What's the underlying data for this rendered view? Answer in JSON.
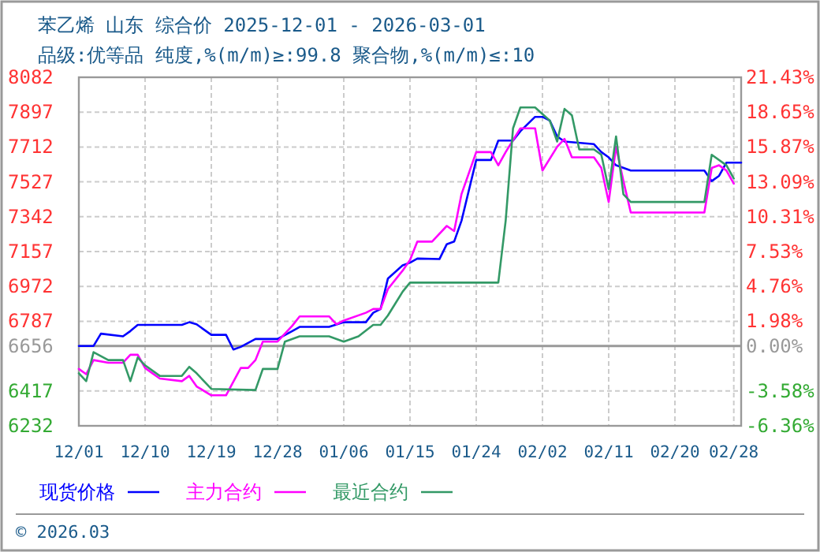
{
  "chart_data": {
    "type": "line",
    "title": "苯乙烯 山东 综合价 2025-12-01 - 2026-03-01",
    "subtitle": "品级:优等品 纯度,%(m/m)≥:99.8 聚合物,%(m/m)≤:10",
    "xlim": [
      "2025-12-01",
      "2026-03-01"
    ],
    "xticks": [
      {
        "value": "2025-12-01",
        "label": "12/01"
      },
      {
        "value": "2025-12-10",
        "label": "12/10"
      },
      {
        "value": "2025-12-19",
        "label": "12/19"
      },
      {
        "value": "2025-12-28",
        "label": "12/28"
      },
      {
        "value": "2026-01-06",
        "label": "01/06"
      },
      {
        "value": "2026-01-15",
        "label": "01/15"
      },
      {
        "value": "2026-01-24",
        "label": "01/24"
      },
      {
        "value": "2026-02-02",
        "label": "02/02"
      },
      {
        "value": "2026-02-11",
        "label": "02/11"
      },
      {
        "value": "2026-02-20",
        "label": "02/20"
      },
      {
        "value": "2026-02-28",
        "label": "02/28"
      }
    ],
    "ylim": [
      6232,
      8082
    ],
    "yticks": [
      6232,
      6417,
      6656,
      6787,
      6972,
      7157,
      7342,
      7527,
      7712,
      7897,
      8082
    ],
    "y2lim": [
      -6.36,
      21.43
    ],
    "y2ticks": [
      {
        "value": -6.36,
        "label": "-6.36%"
      },
      {
        "value": -3.58,
        "label": "-3.58%"
      },
      {
        "value": 0,
        "label": "0.00%"
      },
      {
        "value": 1.98,
        "label": "1.98%"
      },
      {
        "value": 4.76,
        "label": "4.76%"
      },
      {
        "value": 7.53,
        "label": "7.53%"
      },
      {
        "value": 10.31,
        "label": "10.31%"
      },
      {
        "value": 13.09,
        "label": "13.09%"
      },
      {
        "value": 15.87,
        "label": "15.87%"
      },
      {
        "value": 18.65,
        "label": "18.65%"
      },
      {
        "value": 21.43,
        "label": "21.43%"
      }
    ],
    "ref_lines": [
      {
        "axis": "y",
        "value": 6656,
        "color": "#999999",
        "line_style": "solid"
      }
    ],
    "grid": true,
    "legend": "bottom",
    "line_style": "solid",
    "marker": "none",
    "annotations": [
      "© 2026.03"
    ],
    "series": [
      {
        "name": "现货价格",
        "color": "#0000ff",
        "x": [
          "2025-12-01",
          "2025-12-03",
          "2025-12-04",
          "2025-12-07",
          "2025-12-08",
          "2025-12-09",
          "2025-12-15",
          "2025-12-16",
          "2025-12-17",
          "2025-12-19",
          "2025-12-21",
          "2025-12-22",
          "2025-12-23",
          "2025-12-25",
          "2025-12-28",
          "2025-12-30",
          "2025-12-31",
          "2026-01-04",
          "2026-01-06",
          "2026-01-09",
          "2026-01-10",
          "2026-01-11",
          "2026-01-12",
          "2026-01-14",
          "2026-01-15",
          "2026-01-16",
          "2026-01-19",
          "2026-01-20",
          "2026-01-21",
          "2026-01-22",
          "2026-01-24",
          "2026-01-26",
          "2026-01-27",
          "2026-01-29",
          "2026-01-30",
          "2026-02-01",
          "2026-02-02",
          "2026-02-03",
          "2026-02-04",
          "2026-02-05",
          "2026-02-09",
          "2026-02-10",
          "2026-02-11",
          "2026-02-12",
          "2026-02-14",
          "2026-02-24",
          "2026-02-25",
          "2026-02-26",
          "2026-02-27",
          "2026-03-01"
        ],
        "values": [
          6656,
          6656,
          6721,
          6707,
          6735,
          6768,
          6768,
          6782,
          6771,
          6715,
          6715,
          6637,
          6651,
          6693,
          6693,
          6735,
          6757,
          6757,
          6782,
          6782,
          6832,
          6852,
          7014,
          7084,
          7098,
          7120,
          7117,
          7196,
          7210,
          7321,
          7643,
          7643,
          7746,
          7746,
          7796,
          7872,
          7872,
          7852,
          7768,
          7741,
          7727,
          7685,
          7657,
          7615,
          7587,
          7587,
          7531,
          7559,
          7629,
          7629
        ]
      },
      {
        "name": "主力合约",
        "color": "#ff00ff",
        "x": [
          "2025-12-01",
          "2025-12-02",
          "2025-12-03",
          "2025-12-05",
          "2025-12-07",
          "2025-12-08",
          "2025-12-09",
          "2025-12-10",
          "2025-12-11",
          "2025-12-12",
          "2025-12-15",
          "2025-12-16",
          "2025-12-17",
          "2025-12-19",
          "2025-12-21",
          "2025-12-23",
          "2025-12-24",
          "2025-12-25",
          "2025-12-26",
          "2025-12-28",
          "2025-12-30",
          "2025-12-31",
          "2026-01-04",
          "2026-01-05",
          "2026-01-06",
          "2026-01-09",
          "2026-01-10",
          "2026-01-11",
          "2026-01-12",
          "2026-01-14",
          "2026-01-15",
          "2026-01-16",
          "2026-01-18",
          "2026-01-20",
          "2026-01-21",
          "2026-01-22",
          "2026-01-24",
          "2026-01-26",
          "2026-01-27",
          "2026-01-28",
          "2026-01-30",
          "2026-02-01",
          "2026-02-02",
          "2026-02-04",
          "2026-02-05",
          "2026-02-06",
          "2026-02-09",
          "2026-02-10",
          "2026-02-11",
          "2026-02-12",
          "2026-02-13",
          "2026-02-14",
          "2026-02-24",
          "2026-02-25",
          "2026-02-26",
          "2026-02-27",
          "2026-02-28"
        ],
        "values": [
          6534,
          6506,
          6581,
          6567,
          6567,
          6609,
          6609,
          6539,
          6511,
          6483,
          6469,
          6497,
          6441,
          6394,
          6394,
          6539,
          6539,
          6581,
          6679,
          6679,
          6763,
          6813,
          6813,
          6771,
          6791,
          6832,
          6852,
          6852,
          6958,
          7056,
          7112,
          7210,
          7210,
          7293,
          7266,
          7462,
          7685,
          7685,
          7615,
          7685,
          7811,
          7811,
          7587,
          7713,
          7755,
          7657,
          7657,
          7601,
          7420,
          7713,
          7531,
          7364,
          7364,
          7601,
          7615,
          7587,
          7517
        ]
      },
      {
        "name": "最近合约",
        "color": "#339966",
        "x": [
          "2025-12-01",
          "2025-12-02",
          "2025-12-03",
          "2025-12-05",
          "2025-12-07",
          "2025-12-08",
          "2025-12-09",
          "2025-12-10",
          "2025-12-12",
          "2025-12-15",
          "2025-12-16",
          "2025-12-17",
          "2025-12-19",
          "2025-12-25",
          "2025-12-26",
          "2025-12-28",
          "2025-12-29",
          "2025-12-31",
          "2026-01-04",
          "2026-01-06",
          "2026-01-08",
          "2026-01-10",
          "2026-01-11",
          "2026-01-12",
          "2026-01-14",
          "2026-01-15",
          "2026-01-27",
          "2026-01-28",
          "2026-01-29",
          "2026-01-30",
          "2026-02-01",
          "2026-02-03",
          "2026-02-04",
          "2026-02-05",
          "2026-02-06",
          "2026-02-07",
          "2026-02-09",
          "2026-02-10",
          "2026-02-11",
          "2026-02-12",
          "2026-02-13",
          "2026-02-14",
          "2026-02-24",
          "2026-02-25",
          "2026-02-27",
          "2026-02-28"
        ],
        "values": [
          6511,
          6469,
          6623,
          6581,
          6581,
          6469,
          6595,
          6553,
          6497,
          6497,
          6545,
          6511,
          6428,
          6422,
          6534,
          6534,
          6679,
          6707,
          6707,
          6679,
          6707,
          6768,
          6768,
          6818,
          6944,
          6992,
          6992,
          7321,
          7811,
          7922,
          7922,
          7852,
          7741,
          7914,
          7880,
          7699,
          7699,
          7671,
          7489,
          7768,
          7461,
          7420,
          7420,
          7671,
          7615,
          7545
        ]
      }
    ]
  }
}
